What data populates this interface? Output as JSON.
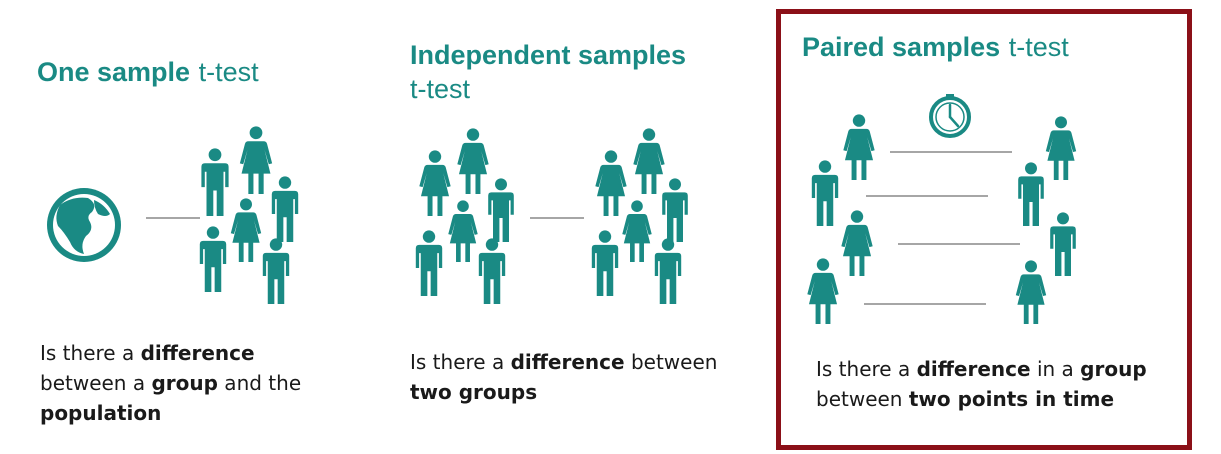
{
  "panels": [
    {
      "title_bold": "One sample",
      "title_rest": "t-test",
      "caption": [
        {
          "t": "Is there a ",
          "b": false
        },
        {
          "t": "difference",
          "b": true
        },
        {
          "t": " between a ",
          "b": false
        },
        {
          "t": "group",
          "b": true
        },
        {
          "t": " and the ",
          "b": false
        },
        {
          "t": "population",
          "b": true
        }
      ]
    },
    {
      "title_bold": "Independent samples",
      "title_rest": "t-test",
      "caption": [
        {
          "t": "Is there a ",
          "b": false
        },
        {
          "t": "difference",
          "b": true
        },
        {
          "t": " between ",
          "b": false
        },
        {
          "t": "two groups",
          "b": true
        }
      ]
    },
    {
      "title_bold": "Paired samples",
      "title_rest": "t-test",
      "caption": [
        {
          "t": "Is there a ",
          "b": false
        },
        {
          "t": "difference",
          "b": true
        },
        {
          "t": " in a ",
          "b": false
        },
        {
          "t": "group",
          "b": true
        },
        {
          "t": " between ",
          "b": false
        },
        {
          "t": "two points in time",
          "b": true
        }
      ]
    }
  ],
  "colors": {
    "teal": "#1a8a84",
    "frame": "#8b1018",
    "line": "#a6a6a6"
  },
  "icons": [
    "globe-icon",
    "person-icon",
    "clock-icon"
  ]
}
